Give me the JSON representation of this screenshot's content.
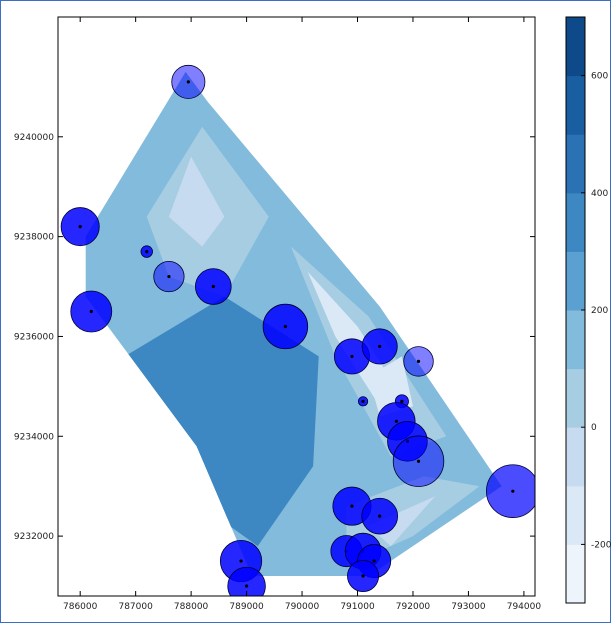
{
  "chart_data": {
    "type": "scatter",
    "subtype": "filled contour map with proportional circle markers",
    "title": "",
    "xlabel": "",
    "ylabel": "",
    "xlim": [
      785600,
      794200
    ],
    "ylim": [
      9230800,
      9242400
    ],
    "x_ticks": [
      786000,
      787000,
      788000,
      789000,
      790000,
      791000,
      792000,
      793000,
      794000
    ],
    "y_ticks": [
      9232000,
      9234000,
      9236000,
      9238000,
      9240000
    ],
    "grid": false,
    "colorbar": {
      "range": [
        -300,
        700
      ],
      "ticks": [
        -200,
        0,
        200,
        400,
        600
      ],
      "levels": [
        -300,
        -200,
        -100,
        0,
        100,
        200,
        300,
        400,
        500,
        600,
        700
      ],
      "colors": [
        "#eef4fb",
        "#dbe8f6",
        "#c6dbef",
        "#a7cde3",
        "#82bbdb",
        "#5aa0d0",
        "#3d87c2",
        "#2a72b4",
        "#1a5ea2",
        "#0e4a8a",
        "#08306b"
      ]
    },
    "contour_region": {
      "polygon": [
        [
          787900,
          9241300
        ],
        [
          786100,
          9238000
        ],
        [
          786100,
          9236800
        ],
        [
          788100,
          9233800
        ],
        [
          789100,
          9231200
        ],
        [
          791200,
          9231200
        ],
        [
          793600,
          9233000
        ],
        [
          791400,
          9236600
        ],
        [
          788300,
          9240700
        ]
      ],
      "base_color": "#82bbdb",
      "zones": [
        {
          "color": "#2a72b4",
          "points": [
            [
              787000,
              9234800
            ],
            [
              788400,
              9236000
            ],
            [
              789800,
              9234600
            ],
            [
              789400,
              9232200
            ],
            [
              788400,
              9232400
            ]
          ]
        },
        {
          "color": "#3d87c2",
          "points": [
            [
              786800,
              9235600
            ],
            [
              788600,
              9236800
            ],
            [
              790300,
              9235600
            ],
            [
              790200,
              9233400
            ],
            [
              789200,
              9231800
            ],
            [
              788200,
              9232600
            ],
            [
              787200,
              9234200
            ]
          ]
        },
        {
          "color": "#a7cde3",
          "points": [
            [
              787200,
              9238400
            ],
            [
              788200,
              9240200
            ],
            [
              789400,
              9238400
            ],
            [
              788600,
              9236800
            ],
            [
              787600,
              9237200
            ]
          ]
        },
        {
          "color": "#c6dbef",
          "points": [
            [
              787600,
              9238400
            ],
            [
              788000,
              9239600
            ],
            [
              788600,
              9238400
            ],
            [
              788200,
              9237800
            ]
          ]
        },
        {
          "color": "#a7cde3",
          "points": [
            [
              789800,
              9237800
            ],
            [
              791200,
              9236400
            ],
            [
              792600,
              9234000
            ],
            [
              791600,
              9233600
            ],
            [
              790600,
              9235600
            ]
          ]
        },
        {
          "color": "#dbe8f6",
          "points": [
            [
              790100,
              9237300
            ],
            [
              791000,
              9236200
            ],
            [
              791800,
              9234800
            ],
            [
              791400,
              9234600
            ],
            [
              790600,
              9236000
            ]
          ]
        },
        {
          "color": "#a7cde3",
          "points": [
            [
              790800,
              9232600
            ],
            [
              792200,
              9233200
            ],
            [
              793200,
              9233000
            ],
            [
              792000,
              9232000
            ],
            [
              790800,
              9231400
            ]
          ]
        },
        {
          "color": "#c6dbef",
          "points": [
            [
              791200,
              9232200
            ],
            [
              792400,
              9232800
            ],
            [
              791600,
              9231800
            ]
          ]
        },
        {
          "color": "#dbe8f6",
          "points": [
            [
              791200,
              9235200
            ],
            [
              791800,
              9235600
            ],
            [
              792000,
              9234600
            ],
            [
              791400,
              9234400
            ]
          ]
        }
      ]
    },
    "points": [
      {
        "x": 787950,
        "y": 9241100,
        "size": 250,
        "alpha": 0.5
      },
      {
        "x": 786000,
        "y": 9238200,
        "size": 330,
        "alpha": 0.85
      },
      {
        "x": 787200,
        "y": 9237700,
        "size": 30,
        "alpha": 0.85
      },
      {
        "x": 787600,
        "y": 9237200,
        "size": 210,
        "alpha": 0.5
      },
      {
        "x": 788400,
        "y": 9237000,
        "size": 290,
        "alpha": 0.85
      },
      {
        "x": 786200,
        "y": 9236500,
        "size": 380,
        "alpha": 0.85
      },
      {
        "x": 789700,
        "y": 9236200,
        "size": 450,
        "alpha": 0.85
      },
      {
        "x": 790900,
        "y": 9235600,
        "size": 280,
        "alpha": 0.85
      },
      {
        "x": 791400,
        "y": 9235800,
        "size": 280,
        "alpha": 0.85
      },
      {
        "x": 792100,
        "y": 9235500,
        "size": 200,
        "alpha": 0.5
      },
      {
        "x": 791800,
        "y": 9234700,
        "size": 40,
        "alpha": 0.85
      },
      {
        "x": 791100,
        "y": 9234700,
        "size": 20,
        "alpha": 0.85
      },
      {
        "x": 791700,
        "y": 9234300,
        "size": 320,
        "alpha": 0.85
      },
      {
        "x": 791900,
        "y": 9233900,
        "size": 360,
        "alpha": 0.85
      },
      {
        "x": 792100,
        "y": 9233500,
        "size": 580,
        "alpha": 0.5
      },
      {
        "x": 793800,
        "y": 9232900,
        "size": 630,
        "alpha": 0.7
      },
      {
        "x": 790900,
        "y": 9232600,
        "size": 330,
        "alpha": 0.85
      },
      {
        "x": 791400,
        "y": 9232400,
        "size": 290,
        "alpha": 0.85
      },
      {
        "x": 790800,
        "y": 9231700,
        "size": 220,
        "alpha": 0.85
      },
      {
        "x": 791100,
        "y": 9231700,
        "size": 290,
        "alpha": 0.85
      },
      {
        "x": 791300,
        "y": 9231500,
        "size": 250,
        "alpha": 0.85
      },
      {
        "x": 791100,
        "y": 9231200,
        "size": 220,
        "alpha": 0.85
      },
      {
        "x": 788900,
        "y": 9231500,
        "size": 390,
        "alpha": 0.85
      },
      {
        "x": 789000,
        "y": 9231000,
        "size": 320,
        "alpha": 0.85
      }
    ],
    "marker_color": "#0000ff"
  }
}
